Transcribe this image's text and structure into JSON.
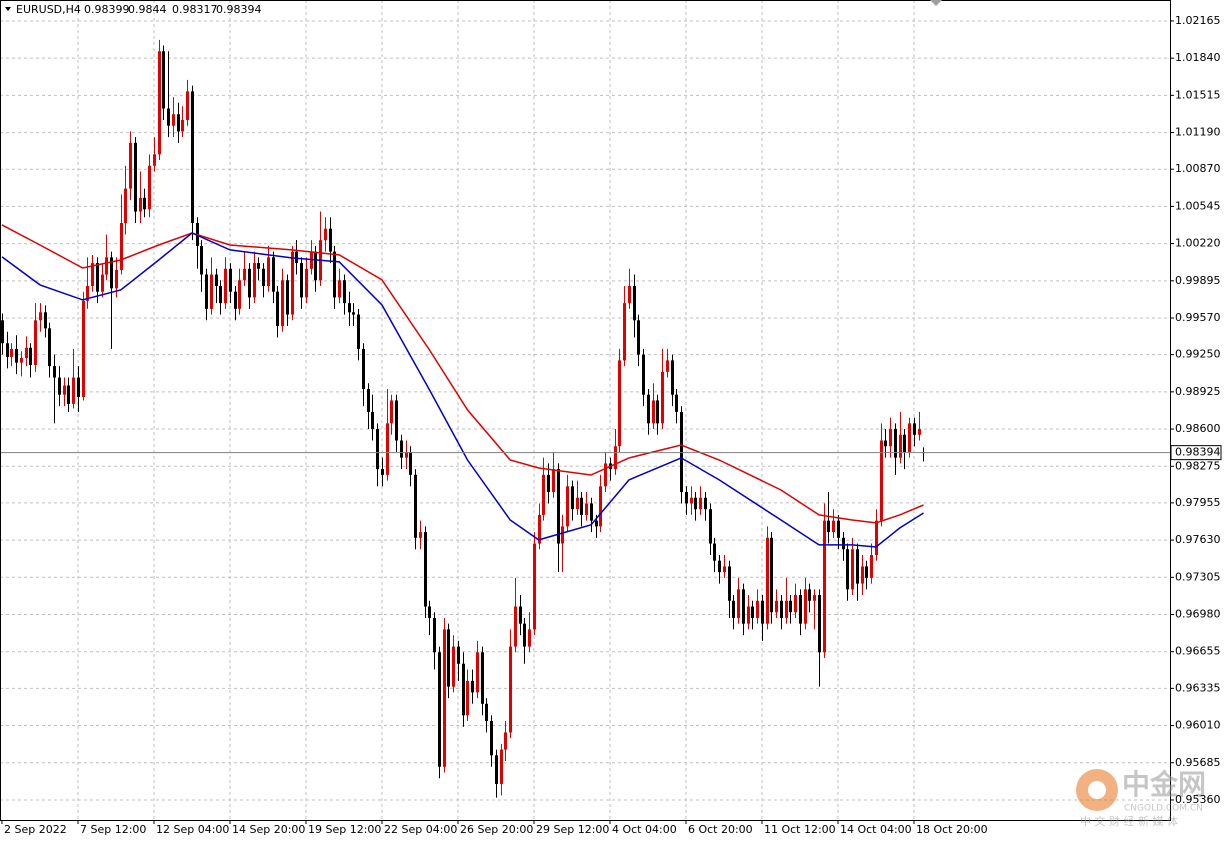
{
  "chart_data": {
    "type": "candlestick",
    "title": "EURUSD,H4",
    "up_color": "#e00000",
    "down_color": "#000000",
    "grid": true,
    "ylim": [
      0.95185,
      1.02348
    ],
    "xlim": [
      -0.42,
      245.9
    ],
    "yticks": [
      1.02165,
      {
        "value": 1.0184,
        "label": "1.01840"
      },
      1.01515,
      {
        "value": 1.0119,
        "label": "1.01190"
      },
      {
        "value": 1.0087,
        "label": "1.00870"
      },
      1.00545,
      {
        "value": 1.0022,
        "label": "1.00220"
      },
      0.99895,
      {
        "value": 0.9957,
        "label": "0.99570"
      },
      {
        "value": 0.9925,
        "label": "0.99250"
      },
      0.98925,
      {
        "value": 0.986,
        "label": "0.98600"
      },
      0.98275,
      0.97955,
      {
        "value": 0.9763,
        "label": "0.97630"
      },
      0.97305,
      {
        "value": 0.9698,
        "label": "0.96980"
      },
      0.96655,
      0.96335,
      {
        "value": 0.9601,
        "label": "0.96010"
      },
      0.95685,
      {
        "value": 0.9536,
        "label": "0.95360"
      }
    ],
    "xticks": [
      {
        "value": 0,
        "label": "2 Sep 2022"
      },
      {
        "value": 16,
        "label": "7 Sep 12:00"
      },
      {
        "value": 32,
        "label": "12 Sep 04:00"
      },
      {
        "value": 48,
        "label": "14 Sep 20:00"
      },
      {
        "value": 64,
        "label": "19 Sep 12:00"
      },
      {
        "value": 80,
        "label": "22 Sep 04:00"
      },
      {
        "value": 96,
        "label": "26 Sep 20:00"
      },
      {
        "value": 112,
        "label": "29 Sep 12:00"
      },
      {
        "value": 128,
        "label": "4 Oct 04:00"
      },
      {
        "value": 144,
        "label": "6 Oct 20:00"
      },
      {
        "value": 160,
        "label": "11 Oct 12:00"
      },
      {
        "value": 176,
        "label": "14 Oct 04:00"
      },
      {
        "value": 192,
        "label": "18 Oct 20:00"
      }
    ],
    "candles": [
      [
        0.9955,
        0.9961,
        0.9925,
        0.9935
      ],
      [
        0.9935,
        0.9945,
        0.9913,
        0.9923
      ],
      [
        0.9923,
        0.9935,
        0.9915,
        0.993
      ],
      [
        0.993,
        0.9942,
        0.9908,
        0.9918
      ],
      [
        0.9918,
        0.9928,
        0.9906,
        0.9922
      ],
      [
        0.9922,
        0.9941,
        0.9915,
        0.9931
      ],
      [
        0.9931,
        0.9935,
        0.9905,
        0.9916
      ],
      [
        0.9916,
        0.997,
        0.991,
        0.9955
      ],
      [
        0.9955,
        0.997,
        0.9945,
        0.9962
      ],
      [
        0.9962,
        0.9968,
        0.994,
        0.9948
      ],
      [
        0.9948,
        0.9953,
        0.9905,
        0.9915
      ],
      [
        0.9915,
        0.9925,
        0.9865,
        0.9905
      ],
      [
        0.9905,
        0.9915,
        0.988,
        0.989
      ],
      [
        0.989,
        0.9905,
        0.988,
        0.9898
      ],
      [
        0.9898,
        0.9905,
        0.9875,
        0.9882
      ],
      [
        0.9882,
        0.993,
        0.9878,
        0.9905
      ],
      [
        0.9905,
        0.9915,
        0.9875,
        0.9888
      ],
      [
        0.9888,
        0.998,
        0.9885,
        0.9972
      ],
      [
        0.9972,
        1.001,
        0.9965,
        0.9985
      ],
      [
        0.9985,
        1.0012,
        0.998,
        1.0005
      ],
      [
        1.0005,
        1.001,
        0.997,
        0.998
      ],
      [
        0.998,
        1.0005,
        0.9975,
        0.9995
      ],
      [
        0.9995,
        1.003,
        0.999,
        1.001
      ],
      [
        1.001,
        1.0015,
        0.993,
        0.9983
      ],
      [
        0.9983,
        1.001,
        0.9975,
        0.9999
      ],
      [
        0.9999,
        1.0065,
        0.9995,
        1.004
      ],
      [
        1.004,
        1.009,
        1.003,
        1.007
      ],
      [
        1.007,
        1.012,
        1.006,
        1.011
      ],
      [
        1.011,
        1.0115,
        1.004,
        1.005
      ],
      [
        1.005,
        1.0085,
        1.004,
        1.0062
      ],
      [
        1.0062,
        1.007,
        1.0045,
        1.0052
      ],
      [
        1.0052,
        1.01,
        1.0045,
        1.009
      ],
      [
        1.009,
        1.0115,
        1.0085,
        1.01
      ],
      [
        1.01,
        1.02,
        1.0095,
        1.019
      ],
      [
        1.019,
        1.0195,
        1.013,
        1.014
      ],
      [
        1.014,
        1.019,
        1.0115,
        1.0125
      ],
      [
        1.0125,
        1.015,
        1.0115,
        1.0135
      ],
      [
        1.0135,
        1.0145,
        1.011,
        1.012
      ],
      [
        1.012,
        1.0142,
        1.0115,
        1.013
      ],
      [
        1.013,
        1.0165,
        1.0125,
        1.0155
      ],
      [
        1.0155,
        1.016,
        1.0025,
        1.004
      ],
      [
        1.004,
        1.0045,
        1.0,
        1.002
      ],
      [
        1.002,
        1.0025,
        0.998,
        0.9995
      ],
      [
        0.9995,
        1.0,
        0.9955,
        0.9965
      ],
      [
        0.9965,
        1.001,
        0.996,
        0.9995
      ],
      [
        0.9995,
        1.0,
        0.997,
        0.9985
      ],
      [
        0.9985,
        0.999,
        0.996,
        0.997
      ],
      [
        0.997,
        1.001,
        0.9965,
        1.0
      ],
      [
        1.0,
        1.0005,
        0.997,
        0.998
      ],
      [
        0.998,
        0.9985,
        0.9955,
        0.9965
      ],
      [
        0.9965,
        1.0,
        0.996,
        0.999
      ],
      [
        0.999,
        1.0015,
        0.9985,
        1.0
      ],
      [
        1.0,
        1.0005,
        0.9965,
        0.9975
      ],
      [
        0.9975,
        1.0015,
        0.997,
        1.0005
      ],
      [
        1.0005,
        1.001,
        0.999,
        1.0
      ],
      [
        1.0,
        1.0005,
        0.9975,
        0.9985
      ],
      [
        0.9985,
        1.002,
        0.998,
        1.001
      ],
      [
        1.001,
        1.0015,
        0.997,
        0.998
      ],
      [
        0.998,
        0.9985,
        0.994,
        0.995
      ],
      [
        0.995,
        1.0,
        0.9945,
        0.999
      ],
      [
        0.999,
        0.9995,
        0.995,
        0.996
      ],
      [
        0.996,
        1.002,
        0.9955,
        1.0015
      ],
      [
        1.0015,
        1.0025,
        0.9995,
        1.0005
      ],
      [
        1.0005,
        1.001,
        0.9965,
        0.9975
      ],
      [
        0.9975,
        1.001,
        0.997,
        1.0
      ],
      [
        1.0,
        1.0025,
        0.9995,
        1.0015
      ],
      [
        1.0015,
        1.002,
        0.998,
        0.999
      ],
      [
        0.999,
        1.005,
        0.9985,
        1.0025
      ],
      [
        1.0025,
        1.0045,
        1.0015,
        1.0035
      ],
      [
        1.0035,
        1.0045,
        1.0005,
        1.0015
      ],
      [
        1.0015,
        1.002,
        0.9965,
        0.9975
      ],
      [
        0.9975,
        1.0,
        0.997,
        0.999
      ],
      [
        0.999,
        0.9995,
        0.996,
        0.997
      ],
      [
        0.997,
        0.998,
        0.995,
        0.9962
      ],
      [
        0.9962,
        0.997,
        0.995,
        0.996
      ],
      [
        0.996,
        0.9965,
        0.992,
        0.993
      ],
      [
        0.993,
        0.9935,
        0.988,
        0.9895
      ],
      [
        0.9895,
        0.99,
        0.986,
        0.9875
      ],
      [
        0.9875,
        0.989,
        0.985,
        0.986
      ],
      [
        0.986,
        0.9865,
        0.981,
        0.9825
      ],
      [
        0.9825,
        0.9835,
        0.981,
        0.982
      ],
      [
        0.982,
        0.9895,
        0.9815,
        0.9865
      ],
      [
        0.9865,
        0.989,
        0.9855,
        0.9885
      ],
      [
        0.9885,
        0.989,
        0.984,
        0.985
      ],
      [
        0.985,
        0.9855,
        0.9825,
        0.9835
      ],
      [
        0.9835,
        0.985,
        0.9825,
        0.984
      ],
      [
        0.984,
        0.9845,
        0.981,
        0.982
      ],
      [
        0.982,
        0.9825,
        0.9755,
        0.9765
      ],
      [
        0.9765,
        0.978,
        0.9755,
        0.977
      ],
      [
        0.977,
        0.9775,
        0.9695,
        0.9705
      ],
      [
        0.9705,
        0.971,
        0.968,
        0.9695
      ],
      [
        0.9695,
        0.97,
        0.965,
        0.9665
      ],
      [
        0.9665,
        0.967,
        0.9555,
        0.9565
      ],
      [
        0.9565,
        0.9695,
        0.956,
        0.9685
      ],
      [
        0.9685,
        0.969,
        0.9625,
        0.9635
      ],
      [
        0.9635,
        0.968,
        0.963,
        0.967
      ],
      [
        0.967,
        0.9675,
        0.964,
        0.9655
      ],
      [
        0.9655,
        0.9665,
        0.96,
        0.961
      ],
      [
        0.961,
        0.965,
        0.9605,
        0.964
      ],
      [
        0.964,
        0.965,
        0.962,
        0.963
      ],
      [
        0.963,
        0.9675,
        0.9625,
        0.9665
      ],
      [
        0.9665,
        0.967,
        0.961,
        0.962
      ],
      [
        0.962,
        0.9625,
        0.9595,
        0.9605
      ],
      [
        0.9605,
        0.961,
        0.9565,
        0.9575
      ],
      [
        0.9575,
        0.958,
        0.9538,
        0.955
      ],
      [
        0.955,
        0.9585,
        0.954,
        0.958
      ],
      [
        0.958,
        0.9605,
        0.957,
        0.9595
      ],
      [
        0.9595,
        0.9685,
        0.959,
        0.967
      ],
      [
        0.967,
        0.973,
        0.9665,
        0.9705
      ],
      [
        0.9705,
        0.9715,
        0.968,
        0.969
      ],
      [
        0.969,
        0.9695,
        0.9655,
        0.967
      ],
      [
        0.967,
        0.97,
        0.9665,
        0.9685
      ],
      [
        0.9685,
        0.977,
        0.968,
        0.976
      ],
      [
        0.976,
        0.9795,
        0.9755,
        0.9785
      ],
      [
        0.9785,
        0.9835,
        0.978,
        0.982
      ],
      [
        0.982,
        0.983,
        0.9795,
        0.9805
      ],
      [
        0.9805,
        0.984,
        0.98,
        0.9825
      ],
      [
        0.9825,
        0.983,
        0.9735,
        0.976
      ],
      [
        0.976,
        0.9785,
        0.9735,
        0.9775
      ],
      [
        0.9775,
        0.982,
        0.977,
        0.981
      ],
      [
        0.981,
        0.9815,
        0.978,
        0.979
      ],
      [
        0.979,
        0.9815,
        0.9785,
        0.98
      ],
      [
        0.98,
        0.9805,
        0.9775,
        0.9785
      ],
      [
        0.9785,
        0.9805,
        0.978,
        0.9795
      ],
      [
        0.9795,
        0.98,
        0.977,
        0.978
      ],
      [
        0.978,
        0.9785,
        0.9765,
        0.9775
      ],
      [
        0.9775,
        0.982,
        0.977,
        0.981
      ],
      [
        0.981,
        0.984,
        0.9805,
        0.983
      ],
      [
        0.983,
        0.9835,
        0.9815,
        0.9825
      ],
      [
        0.9825,
        0.986,
        0.982,
        0.9845
      ],
      [
        0.9845,
        0.993,
        0.984,
        0.992
      ],
      [
        0.992,
        0.9985,
        0.9915,
        0.997
      ],
      [
        0.997,
        1.0,
        0.9965,
        0.9985
      ],
      [
        0.9985,
        0.9995,
        0.994,
        0.9955
      ],
      [
        0.9955,
        0.996,
        0.9915,
        0.9925
      ],
      [
        0.9925,
        0.993,
        0.988,
        0.989
      ],
      [
        0.989,
        0.9895,
        0.9855,
        0.9865
      ],
      [
        0.9865,
        0.99,
        0.986,
        0.9885
      ],
      [
        0.9885,
        0.989,
        0.9855,
        0.9865
      ],
      [
        0.9865,
        0.993,
        0.986,
        0.991
      ],
      [
        0.991,
        0.993,
        0.9905,
        0.992
      ],
      [
        0.992,
        0.9925,
        0.988,
        0.989
      ],
      [
        0.989,
        0.9895,
        0.9865,
        0.9875
      ],
      [
        0.9875,
        0.988,
        0.9795,
        0.9805
      ],
      [
        0.9805,
        0.981,
        0.9785,
        0.9795
      ],
      [
        0.9795,
        0.981,
        0.9785,
        0.98
      ],
      [
        0.98,
        0.9805,
        0.978,
        0.979
      ],
      [
        0.979,
        0.981,
        0.9785,
        0.98
      ],
      [
        0.98,
        0.9805,
        0.978,
        0.979
      ],
      [
        0.979,
        0.9795,
        0.975,
        0.976
      ],
      [
        0.976,
        0.9765,
        0.9735,
        0.9745
      ],
      [
        0.9745,
        0.975,
        0.9725,
        0.9735
      ],
      [
        0.9735,
        0.975,
        0.973,
        0.974
      ],
      [
        0.974,
        0.9745,
        0.9695,
        0.971
      ],
      [
        0.971,
        0.9715,
        0.9685,
        0.9695
      ],
      [
        0.9695,
        0.973,
        0.969,
        0.972
      ],
      [
        0.972,
        0.9725,
        0.968,
        0.969
      ],
      [
        0.969,
        0.9715,
        0.9685,
        0.9705
      ],
      [
        0.9705,
        0.971,
        0.9685,
        0.9695
      ],
      [
        0.9695,
        0.972,
        0.969,
        0.971
      ],
      [
        0.971,
        0.9715,
        0.9675,
        0.969
      ],
      [
        0.969,
        0.9775,
        0.9685,
        0.9765
      ],
      [
        0.9765,
        0.977,
        0.969,
        0.97
      ],
      [
        0.97,
        0.972,
        0.9695,
        0.971
      ],
      [
        0.971,
        0.9715,
        0.9685,
        0.9695
      ],
      [
        0.9695,
        0.973,
        0.969,
        0.971
      ],
      [
        0.971,
        0.9715,
        0.969,
        0.97
      ],
      [
        0.97,
        0.9725,
        0.9695,
        0.9715
      ],
      [
        0.9715,
        0.972,
        0.968,
        0.969
      ],
      [
        0.969,
        0.973,
        0.9685,
        0.972
      ],
      [
        0.972,
        0.9725,
        0.97,
        0.971
      ],
      [
        0.971,
        0.972,
        0.9685,
        0.9715
      ],
      [
        0.9715,
        0.972,
        0.9635,
        0.9665
      ],
      [
        0.9665,
        0.9795,
        0.966,
        0.978
      ],
      [
        0.978,
        0.9805,
        0.976,
        0.977
      ],
      [
        0.977,
        0.979,
        0.9765,
        0.978
      ],
      [
        0.978,
        0.9785,
        0.9755,
        0.9765
      ],
      [
        0.9765,
        0.977,
        0.9745,
        0.9755
      ],
      [
        0.9755,
        0.976,
        0.971,
        0.972
      ],
      [
        0.972,
        0.9765,
        0.9715,
        0.9755
      ],
      [
        0.9755,
        0.976,
        0.971,
        0.9725
      ],
      [
        0.9725,
        0.975,
        0.9715,
        0.974
      ],
      [
        0.974,
        0.9745,
        0.972,
        0.973
      ],
      [
        0.973,
        0.976,
        0.9725,
        0.975
      ],
      [
        0.975,
        0.979,
        0.9745,
        0.978
      ],
      [
        0.978,
        0.9865,
        0.9775,
        0.985
      ],
      [
        0.985,
        0.986,
        0.9835,
        0.9845
      ],
      [
        0.9845,
        0.987,
        0.9835,
        0.986
      ],
      [
        0.986,
        0.9865,
        0.982,
        0.9835
      ],
      [
        0.9835,
        0.9875,
        0.983,
        0.9855
      ],
      [
        0.9855,
        0.986,
        0.9825,
        0.984
      ],
      [
        0.984,
        0.987,
        0.9835,
        0.9865
      ],
      [
        0.9865,
        0.987,
        0.9845,
        0.9855
      ],
      [
        0.9855,
        0.9875,
        0.985,
        0.986
      ],
      [
        0.98399,
        0.9844,
        0.98317,
        0.98394
      ]
    ],
    "lines": [
      {
        "color": "#e00000",
        "x": [
          0,
          8,
          17,
          25,
          33,
          40,
          48,
          61,
          71,
          80,
          90,
          98,
          107,
          113,
          124,
          132,
          143,
          151,
          164,
          172,
          179,
          184,
          189,
          194
        ],
        "values": [
          1.00383,
          1.00208,
          1.00007,
          1.00077,
          1.00208,
          1.00313,
          1.00208,
          1.00165,
          1.00121,
          0.99903,
          0.99291,
          0.98767,
          0.9833,
          0.9826,
          0.98199,
          0.98348,
          0.98461,
          0.9833,
          0.98068,
          0.9785,
          0.97806,
          0.9778,
          0.9785,
          0.97937
        ]
      },
      {
        "color": "#0000c8",
        "x": [
          0,
          8,
          17,
          25,
          33,
          40,
          48,
          61,
          71,
          80,
          90,
          98,
          107,
          113,
          124,
          132,
          143,
          151,
          164,
          172,
          179,
          184,
          189,
          194
        ],
        "values": [
          1.00104,
          0.99859,
          0.99728,
          0.99815,
          1.00077,
          1.00313,
          1.00165,
          1.00095,
          1.0006,
          0.99684,
          0.98942,
          0.9833,
          0.97806,
          0.97632,
          0.97763,
          0.98156,
          0.98348,
          0.98156,
          0.97806,
          0.97588,
          0.97588,
          0.9757,
          0.97736,
          0.97867
        ]
      }
    ],
    "watermark": {
      "brand": "中金网",
      "site": "CNGOLD.COM.CN",
      "slogan": "中 文 财 经 新 媒 体"
    }
  }
}
